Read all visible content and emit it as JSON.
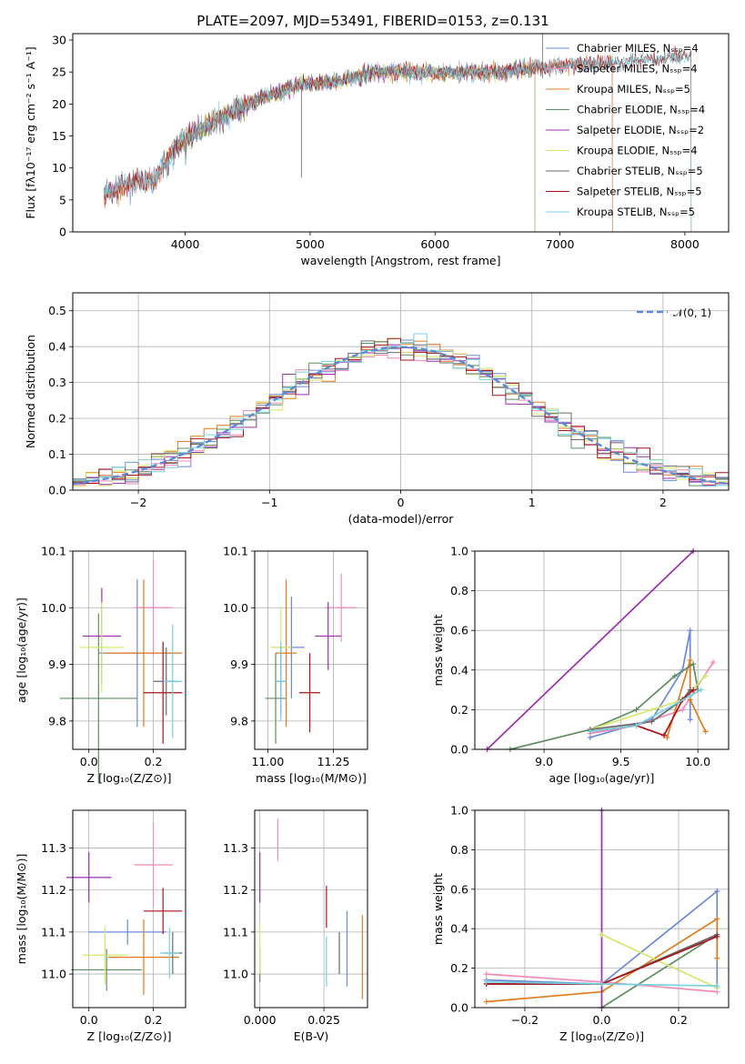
{
  "colors": {
    "Chabrier MILES": "#6a89d8",
    "Salpeter MILES": "#f28ab8",
    "Kroupa MILES": "#e07c1e",
    "Chabrier ELODIE": "#5e8f62",
    "Salpeter ELODIE": "#9b2fb0",
    "Kroupa ELODIE": "#d6e86a",
    "Chabrier STELIB": "#6b6b6b",
    "Salpeter STELIB": "#a8141a",
    "Kroupa STELIB": "#78d0e0"
  },
  "chart_data": [
    {
      "id": "spectrum",
      "type": "line",
      "title": "PLATE=2097, MJD=53491, FIBERID=0153, z=0.131",
      "xlabel": "wavelength [Angstrom, rest frame]",
      "ylabel": "Flux [fλ10⁻¹⁷ erg cm⁻² s⁻¹ A⁻¹]",
      "xlim": [
        3100,
        8350
      ],
      "ylim": [
        0,
        31
      ],
      "xticks": [
        4000,
        5000,
        6000,
        7000,
        8000
      ],
      "yticks": [
        0,
        5,
        10,
        15,
        20,
        25,
        30
      ],
      "legend_placement": "top-right",
      "series": [
        {
          "name": "Chabrier MILES, Nₛₛₚ=4",
          "range": [
            3350,
            7420
          ]
        },
        {
          "name": "Salpeter MILES, Nₛₛₚ=4",
          "range": [
            3350,
            7420
          ]
        },
        {
          "name": "Kroupa MILES, Nₛₛₚ=5",
          "range": [
            3350,
            7420
          ]
        },
        {
          "name": "Chabrier ELODIE, Nₛₛₚ=4",
          "range": [
            3900,
            6800
          ]
        },
        {
          "name": "Salpeter ELODIE, Nₛₛₚ=2",
          "range": [
            3900,
            6800
          ]
        },
        {
          "name": "Kroupa ELODIE, Nₛₛₚ=4",
          "range": [
            3900,
            6800
          ]
        },
        {
          "name": "Chabrier STELIB, Nₛₛₚ=5",
          "range": [
            3350,
            8050
          ]
        },
        {
          "name": "Salpeter STELIB, Nₛₛₚ=5",
          "range": [
            3350,
            8050
          ]
        },
        {
          "name": "Kroupa STELIB, Nₛₛₚ=5",
          "range": [
            3350,
            8050
          ]
        }
      ],
      "continuum": [
        [
          3350,
          6
        ],
        [
          3550,
          7.5
        ],
        [
          3750,
          8
        ],
        [
          3950,
          14
        ],
        [
          4200,
          17
        ],
        [
          4500,
          20
        ],
        [
          4900,
          23
        ],
        [
          5200,
          23.5
        ],
        [
          5500,
          25
        ],
        [
          6000,
          25
        ],
        [
          6500,
          25
        ],
        [
          7000,
          26
        ],
        [
          7500,
          26.5
        ],
        [
          8000,
          27.5
        ]
      ]
    },
    {
      "id": "residuals",
      "type": "histogram",
      "xlabel": "(data-model)/error",
      "ylabel": "Normed distribution",
      "xlim": [
        -2.5,
        2.5
      ],
      "ylim": [
        0,
        0.55
      ],
      "xticks": [
        -2,
        -1,
        0,
        1,
        2
      ],
      "yticks": [
        0.0,
        0.1,
        0.2,
        0.3,
        0.4,
        0.5
      ],
      "bin_width": 0.1,
      "reference_curve": "𝒩(0, 1)",
      "legend_placement": "top-right",
      "grid": true
    },
    {
      "id": "age-vs-Z",
      "type": "scatter",
      "xlabel": "Z [log₁₀(Z/Z⊙)]",
      "ylabel": "age  [log₁₀(age/yr)]",
      "xlim": [
        -0.05,
        0.3
      ],
      "ylim": [
        9.75,
        10.1
      ],
      "xticks": [
        0.0,
        0.2
      ],
      "yticks": [
        9.8,
        9.9,
        10.0,
        10.1
      ],
      "grid": true,
      "points": [
        {
          "model": "Chabrier MILES",
          "x": 0.15,
          "xerr": 0.12,
          "y": 9.92,
          "yerr": 0.13
        },
        {
          "model": "Salpeter MILES",
          "x": 0.2,
          "xerr": 0.06,
          "y": 10.0,
          "yerr": 0.085
        },
        {
          "model": "Kroupa MILES",
          "x": 0.17,
          "xerr": 0.12,
          "y": 9.92,
          "yerr": 0.13
        },
        {
          "model": "Chabrier ELODIE",
          "x": 0.03,
          "xerr": 0.12,
          "y": 9.84,
          "yerr": 0.15
        },
        {
          "model": "Salpeter ELODIE",
          "x": 0.04,
          "xerr": 0.06,
          "y": 9.95,
          "yerr": 0.085
        },
        {
          "model": "Kroupa ELODIE",
          "x": 0.04,
          "xerr": 0.07,
          "y": 9.93,
          "yerr": 0.08
        },
        {
          "model": "Chabrier STELIB",
          "x": 0.24,
          "xerr": 0.04,
          "y": 9.87,
          "yerr": 0.06
        },
        {
          "model": "Salpeter STELIB",
          "x": 0.23,
          "xerr": 0.06,
          "y": 9.85,
          "yerr": 0.09
        },
        {
          "model": "Kroupa STELIB",
          "x": 0.26,
          "xerr": 0.03,
          "y": 9.87,
          "yerr": 0.1
        }
      ]
    },
    {
      "id": "age-vs-mass",
      "type": "scatter",
      "xlabel": "mass [log₁₀(M/M⊙)]",
      "xlim": [
        10.95,
        11.38
      ],
      "ylim": [
        9.75,
        10.1
      ],
      "xticks": [
        11.0,
        11.25
      ],
      "yticks": [
        9.8,
        9.9,
        10.0,
        10.1
      ],
      "grid": true,
      "points": [
        {
          "model": "Chabrier MILES",
          "x": 11.09,
          "xerr": 0.05,
          "y": 9.93,
          "yerr": 0.09
        },
        {
          "model": "Salpeter MILES",
          "x": 11.28,
          "xerr": 0.06,
          "y": 10.0,
          "yerr": 0.06
        },
        {
          "model": "Kroupa MILES",
          "x": 11.07,
          "xerr": 0.04,
          "y": 9.92,
          "yerr": 0.13
        },
        {
          "model": "Chabrier ELODIE",
          "x": 11.03,
          "xerr": 0.04,
          "y": 9.84,
          "yerr": 0.08
        },
        {
          "model": "Salpeter ELODIE",
          "x": 11.23,
          "xerr": 0.05,
          "y": 9.95,
          "yerr": 0.06
        },
        {
          "model": "Kroupa ELODIE",
          "x": 11.05,
          "xerr": 0.04,
          "y": 9.93,
          "yerr": 0.07
        },
        {
          "model": "Chabrier STELIB",
          "x": 11.05,
          "xerr": 0.02,
          "y": 9.87,
          "yerr": 0.06
        },
        {
          "model": "Salpeter STELIB",
          "x": 11.16,
          "xerr": 0.04,
          "y": 9.85,
          "yerr": 0.07
        },
        {
          "model": "Kroupa STELIB",
          "x": 11.05,
          "xerr": 0.02,
          "y": 9.87,
          "yerr": 0.07
        }
      ]
    },
    {
      "id": "mass-weight-vs-age",
      "type": "line",
      "xlabel": "age  [log₁₀(age/yr)]",
      "ylabel": "mass weight",
      "xlim": [
        8.55,
        10.2
      ],
      "ylim": [
        0,
        1.0
      ],
      "xticks": [
        9.0,
        9.5,
        10.0
      ],
      "yticks": [
        0.0,
        0.2,
        0.4,
        0.6,
        0.8,
        1.0
      ],
      "grid": true,
      "series": [
        {
          "model": "Chabrier MILES",
          "points": [
            [
              9.3,
              0.06
            ],
            [
              9.7,
              0.15
            ],
            [
              9.9,
              0.4
            ],
            [
              9.95,
              0.6
            ],
            [
              9.95,
              0.15
            ]
          ]
        },
        {
          "model": "Salpeter MILES",
          "points": [
            [
              9.3,
              0.08
            ],
            [
              9.6,
              0.12
            ],
            [
              9.9,
              0.2
            ],
            [
              10.1,
              0.44
            ]
          ]
        },
        {
          "model": "Kroupa MILES",
          "points": [
            [
              9.8,
              0.06
            ],
            [
              9.95,
              0.45
            ],
            [
              9.95,
              0.25
            ],
            [
              10.05,
              0.09
            ]
          ]
        },
        {
          "model": "Chabrier ELODIE",
          "points": [
            [
              8.78,
              0.0
            ],
            [
              9.3,
              0.1
            ],
            [
              9.6,
              0.2
            ],
            [
              9.85,
              0.37
            ],
            [
              9.97,
              0.43
            ],
            [
              10.0,
              0.3
            ]
          ]
        },
        {
          "model": "Salpeter ELODIE",
          "points": [
            [
              8.63,
              0.0
            ],
            [
              9.97,
              1.0
            ]
          ]
        },
        {
          "model": "Kroupa ELODIE",
          "points": [
            [
              9.3,
              0.1
            ],
            [
              9.7,
              0.2
            ],
            [
              9.9,
              0.25
            ],
            [
              10.05,
              0.37
            ]
          ]
        },
        {
          "model": "Chabrier STELIB",
          "points": [
            [
              9.3,
              0.1
            ],
            [
              9.7,
              0.14
            ],
            [
              9.9,
              0.25
            ],
            [
              9.95,
              0.3
            ]
          ]
        },
        {
          "model": "Salpeter STELIB",
          "points": [
            [
              9.3,
              0.09
            ],
            [
              9.6,
              0.12
            ],
            [
              9.78,
              0.07
            ],
            [
              9.9,
              0.25
            ],
            [
              9.97,
              0.3
            ]
          ]
        },
        {
          "model": "Kroupa STELIB",
          "points": [
            [
              9.3,
              0.09
            ],
            [
              9.6,
              0.12
            ],
            [
              9.95,
              0.27
            ],
            [
              10.02,
              0.3
            ]
          ]
        }
      ]
    },
    {
      "id": "mass-vs-Z",
      "type": "scatter",
      "xlabel": "Z [log₁₀(Z/Z⊙)]",
      "ylabel": "mass [log₁₀(M/M⊙)]",
      "xlim": [
        -0.05,
        0.3
      ],
      "ylim": [
        10.92,
        11.39
      ],
      "xticks": [
        0.0,
        0.2
      ],
      "yticks": [
        11.0,
        11.1,
        11.2,
        11.3
      ],
      "grid": true,
      "points": [
        {
          "model": "Chabrier MILES",
          "x": 0.12,
          "xerr": 0.12,
          "y": 11.1,
          "yerr": 0.03
        },
        {
          "model": "Salpeter MILES",
          "x": 0.2,
          "xerr": 0.06,
          "y": 11.26,
          "yerr": 0.1
        },
        {
          "model": "Kroupa MILES",
          "x": 0.17,
          "xerr": 0.11,
          "y": 11.04,
          "yerr": 0.09
        },
        {
          "model": "Chabrier ELODIE",
          "x": 0.055,
          "xerr": 0.11,
          "y": 11.01,
          "yerr": 0.05
        },
        {
          "model": "Salpeter ELODIE",
          "x": 0.0,
          "xerr": 0.07,
          "y": 11.23,
          "yerr": 0.06
        },
        {
          "model": "Kroupa ELODIE",
          "x": 0.05,
          "xerr": 0.07,
          "y": 11.045,
          "yerr": 0.07
        },
        {
          "model": "Chabrier STELIB",
          "x": 0.26,
          "xerr": 0.03,
          "y": 11.05,
          "yerr": 0.05
        },
        {
          "model": "Salpeter STELIB",
          "x": 0.23,
          "xerr": 0.06,
          "y": 11.15,
          "yerr": 0.055
        },
        {
          "model": "Kroupa STELIB",
          "x": 0.25,
          "xerr": 0.03,
          "y": 11.05,
          "yerr": 0.06
        }
      ]
    },
    {
      "id": "mass-vs-EBV",
      "type": "scatter",
      "xlabel": "E(B-V)",
      "xlim": [
        -0.002,
        0.042
      ],
      "ylim": [
        10.92,
        11.39
      ],
      "xticks": [
        0.0,
        0.025
      ],
      "xticklabels": [
        "0.000",
        "0.025"
      ],
      "yticks": [
        11.0,
        11.1,
        11.2,
        11.3
      ],
      "grid": true,
      "points": [
        {
          "model": "Chabrier MILES",
          "x": 0.034,
          "y": 11.06,
          "yerr": 0.09
        },
        {
          "model": "Salpeter MILES",
          "x": 0.007,
          "y": 11.32,
          "yerr": 0.05
        },
        {
          "model": "Kroupa MILES",
          "x": 0.04,
          "y": 11.04,
          "yerr": 0.1
        },
        {
          "model": "Chabrier ELODIE",
          "x": 0.0,
          "y": 11.02,
          "yerr": 0.04
        },
        {
          "model": "Salpeter ELODIE",
          "x": 0.0,
          "y": 11.23,
          "yerr": 0.06
        },
        {
          "model": "Kroupa ELODIE",
          "x": 0.0,
          "y": 11.06,
          "yerr": 0.06
        },
        {
          "model": "Chabrier STELIB",
          "x": 0.031,
          "y": 11.05,
          "yerr": 0.05
        },
        {
          "model": "Salpeter STELIB",
          "x": 0.026,
          "y": 11.16,
          "yerr": 0.05
        },
        {
          "model": "Kroupa STELIB",
          "x": 0.026,
          "y": 11.03,
          "yerr": 0.06
        }
      ]
    },
    {
      "id": "mass-weight-vs-Z",
      "type": "line",
      "xlabel": "Z [log₁₀(Z/Z⊙)]",
      "ylabel": "mass weight",
      "xlim": [
        -0.33,
        0.33
      ],
      "ylim": [
        0,
        1.0
      ],
      "xticks": [
        -0.2,
        0.0,
        0.2
      ],
      "xticklabels": [
        "−0.2",
        "0.0",
        "0.2"
      ],
      "yticks": [
        0.0,
        0.2,
        0.4,
        0.6,
        0.8,
        1.0
      ],
      "grid": true,
      "series": [
        {
          "model": "Chabrier MILES",
          "points": [
            [
              -0.3,
              0.14
            ],
            [
              0.0,
              0.12
            ],
            [
              0.3,
              0.59
            ],
            [
              0.3,
              0.1
            ]
          ]
        },
        {
          "model": "Salpeter MILES",
          "points": [
            [
              -0.3,
              0.17
            ],
            [
              0.0,
              0.13
            ],
            [
              0.3,
              0.08
            ]
          ]
        },
        {
          "model": "Kroupa MILES",
          "points": [
            [
              -0.3,
              0.03
            ],
            [
              0.0,
              0.08
            ],
            [
              0.3,
              0.45
            ],
            [
              0.3,
              0.25
            ]
          ]
        },
        {
          "model": "Chabrier ELODIE",
          "points": [
            [
              0.0,
              0.0
            ],
            [
              0.3,
              0.37
            ]
          ]
        },
        {
          "model": "Salpeter ELODIE",
          "points": [
            [
              0.0,
              0.0
            ],
            [
              0.0,
              1.0
            ]
          ]
        },
        {
          "model": "Kroupa ELODIE",
          "points": [
            [
              0.0,
              0.37
            ],
            [
              0.3,
              0.1
            ]
          ]
        },
        {
          "model": "Chabrier STELIB",
          "points": [
            [
              -0.3,
              0.12
            ],
            [
              0.0,
              0.12
            ],
            [
              0.3,
              0.37
            ]
          ]
        },
        {
          "model": "Salpeter STELIB",
          "points": [
            [
              -0.3,
              0.12
            ],
            [
              0.0,
              0.12
            ],
            [
              0.3,
              0.36
            ]
          ]
        },
        {
          "model": "Kroupa STELIB",
          "points": [
            [
              -0.3,
              0.13
            ],
            [
              0.0,
              0.12
            ],
            [
              0.3,
              0.11
            ]
          ]
        }
      ]
    }
  ]
}
